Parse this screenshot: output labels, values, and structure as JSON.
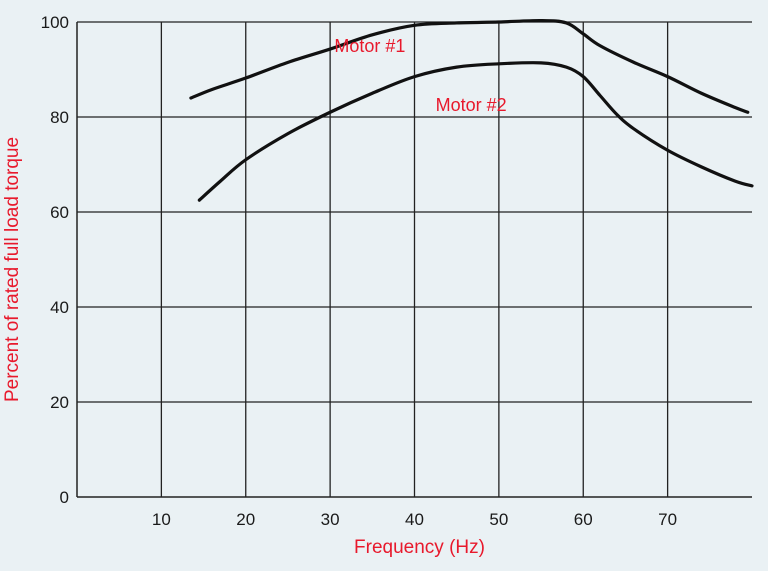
{
  "chart_data": {
    "type": "line",
    "xlabel": "Frequency (Hz)",
    "ylabel": "Percent of rated full load torque",
    "xlim": [
      0,
      80
    ],
    "ylim": [
      0,
      100
    ],
    "x_ticks": [
      10,
      20,
      30,
      40,
      50,
      60,
      70
    ],
    "x_tick_labels": [
      "10",
      "20",
      "30",
      "40",
      "50",
      "60",
      "70"
    ],
    "y_ticks": [
      0,
      20,
      40,
      60,
      80,
      100
    ],
    "y_tick_labels": [
      "0",
      "20",
      "40",
      "60",
      "80",
      "100"
    ],
    "grid": true,
    "series": [
      {
        "name": "Motor #1",
        "label_at": [
          30.5,
          95
        ],
        "points": [
          [
            13.5,
            84
          ],
          [
            16,
            85.8
          ],
          [
            20,
            88.2
          ],
          [
            25,
            91.5
          ],
          [
            30,
            94.3
          ],
          [
            35,
            97.3
          ],
          [
            40,
            99.3
          ],
          [
            45,
            99.8
          ],
          [
            50,
            100
          ],
          [
            55,
            100.3
          ],
          [
            58,
            99.8
          ],
          [
            60,
            97.5
          ],
          [
            62,
            95
          ],
          [
            66,
            91.5
          ],
          [
            70,
            88.5
          ],
          [
            74,
            85
          ],
          [
            78,
            82
          ],
          [
            79.5,
            81
          ]
        ]
      },
      {
        "name": "Motor #2",
        "label_at": [
          42.5,
          82.5
        ],
        "points": [
          [
            14.5,
            62.5
          ],
          [
            17,
            66.5
          ],
          [
            20,
            71
          ],
          [
            25,
            76.5
          ],
          [
            30,
            81
          ],
          [
            35,
            85
          ],
          [
            40,
            88.5
          ],
          [
            45,
            90.5
          ],
          [
            50,
            91.2
          ],
          [
            55,
            91.4
          ],
          [
            58,
            90.5
          ],
          [
            60,
            88.5
          ],
          [
            62,
            84.5
          ],
          [
            64,
            80.5
          ],
          [
            66,
            77.5
          ],
          [
            70,
            73
          ],
          [
            74,
            69.5
          ],
          [
            78,
            66.5
          ],
          [
            80,
            65.5
          ]
        ]
      }
    ],
    "line_color": "#111111",
    "label_color": "#e8192c",
    "background": "#eaf1f4"
  }
}
